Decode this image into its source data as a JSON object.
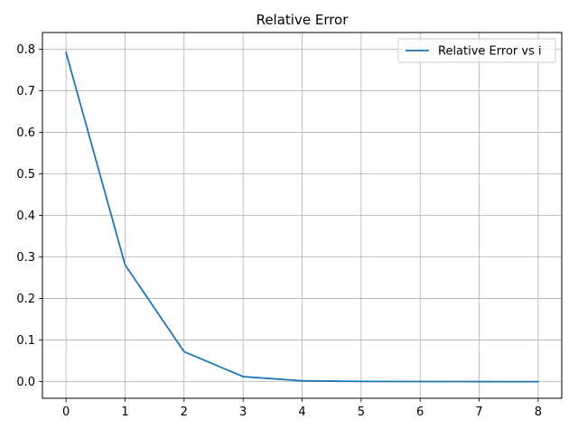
{
  "chart_data": {
    "type": "line",
    "title": "Relative Error",
    "xlabel": "",
    "ylabel": "",
    "grid": true,
    "legend_position": "top-right",
    "xlim": [
      -0.4,
      8.4
    ],
    "ylim": [
      -0.04,
      0.84
    ],
    "xticks": [
      0,
      1,
      2,
      3,
      4,
      5,
      6,
      7,
      8
    ],
    "xtick_labels": [
      "0",
      "1",
      "2",
      "3",
      "4",
      "5",
      "6",
      "7",
      "8"
    ],
    "yticks": [
      0.0,
      0.1,
      0.2,
      0.3,
      0.4,
      0.5,
      0.6,
      0.7,
      0.8
    ],
    "ytick_labels": [
      "0.0",
      "0.1",
      "0.2",
      "0.3",
      "0.4",
      "0.5",
      "0.6",
      "0.7",
      "0.8"
    ],
    "series": [
      {
        "name": "Relative Error vs i",
        "color": "#1f77b4",
        "x": [
          0,
          1,
          2,
          3,
          4,
          5,
          6,
          7,
          8
        ],
        "y": [
          0.792,
          0.281,
          0.072,
          0.012,
          0.002,
          0.0005,
          0.0002,
          0.0001,
          0.0
        ]
      }
    ]
  }
}
